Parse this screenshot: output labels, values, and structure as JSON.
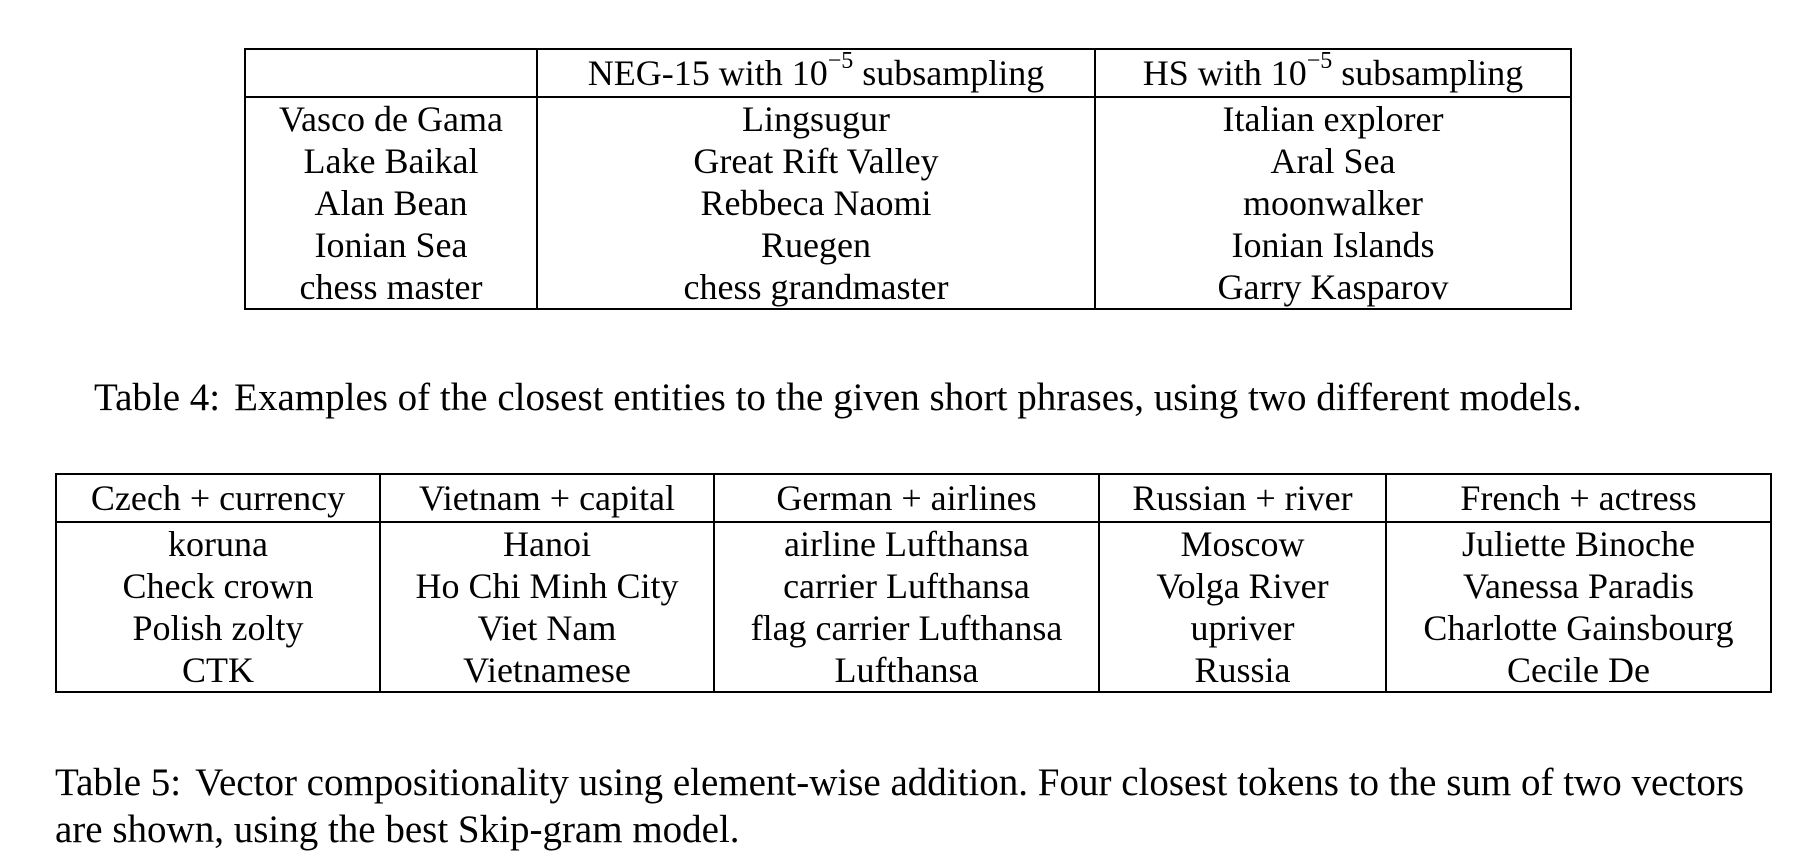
{
  "table4": {
    "headers": [
      "",
      {
        "pre": "NEG-15 with 10",
        "exp": "−5",
        "post": " subsampling"
      },
      {
        "pre": "HS with 10",
        "exp": "−5",
        "post": " subsampling"
      }
    ],
    "rows": [
      [
        "Vasco de Gama",
        "Lingsugur",
        "Italian explorer"
      ],
      [
        "Lake Baikal",
        "Great Rift Valley",
        "Aral Sea"
      ],
      [
        "Alan Bean",
        "Rebbeca Naomi",
        "moonwalker"
      ],
      [
        "Ionian Sea",
        "Ruegen",
        "Ionian Islands"
      ],
      [
        "chess master",
        "chess grandmaster",
        "Garry Kasparov"
      ]
    ],
    "caption_label": "Table 4:",
    "caption_text": "Examples of the closest entities to the given short phrases, using two different models."
  },
  "table5": {
    "headers": [
      "Czech + currency",
      "Vietnam + capital",
      "German + airlines",
      "Russian + river",
      "French + actress"
    ],
    "rows": [
      [
        "koruna",
        "Hanoi",
        "airline Lufthansa",
        "Moscow",
        "Juliette Binoche"
      ],
      [
        "Check crown",
        "Ho Chi Minh City",
        "carrier Lufthansa",
        "Volga River",
        "Vanessa Paradis"
      ],
      [
        "Polish zolty",
        "Viet Nam",
        "flag carrier Lufthansa",
        "upriver",
        "Charlotte Gainsbourg"
      ],
      [
        "CTK",
        "Vietnamese",
        "Lufthansa",
        "Russia",
        "Cecile De"
      ]
    ],
    "caption_label": "Table 5:",
    "caption_text": "Vector compositionality using element-wise addition. Four closest tokens to the sum of two vectors are shown, using the best Skip-gram model."
  }
}
